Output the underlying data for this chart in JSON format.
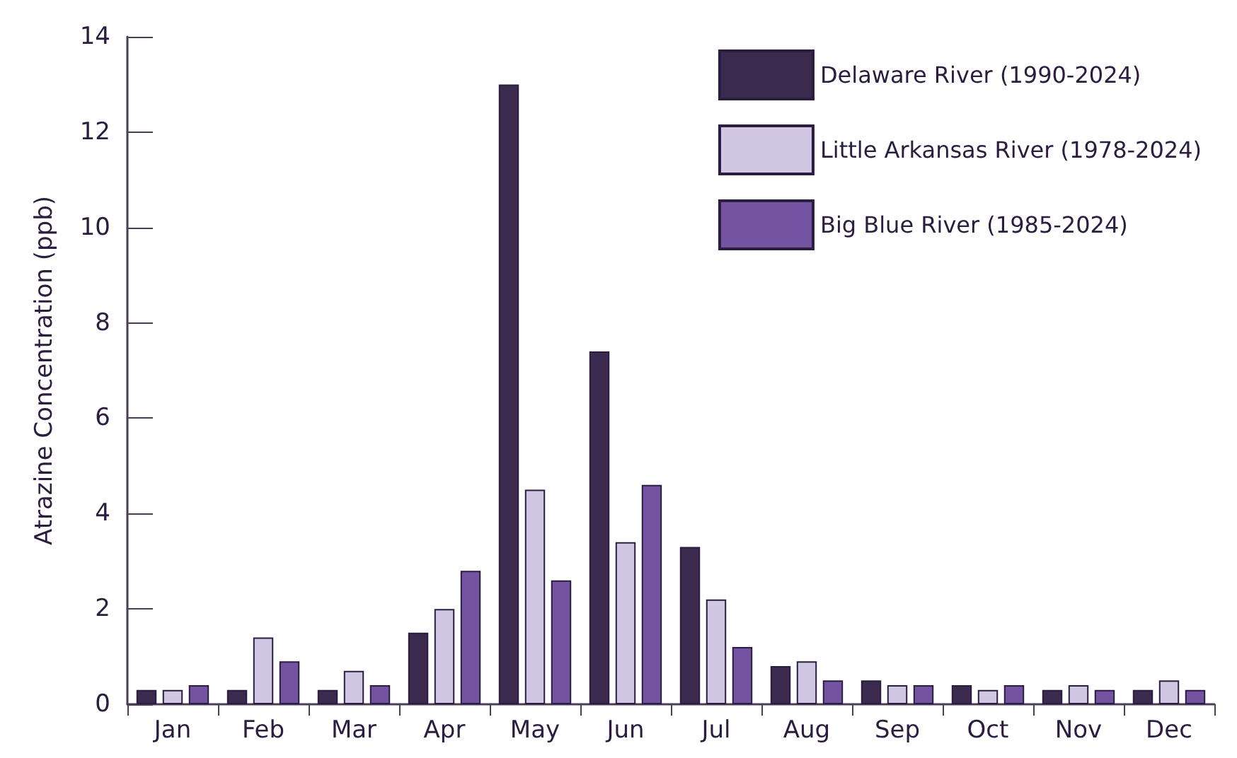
{
  "chart_data": {
    "type": "bar",
    "ylabel": "Atrazine Concentration (ppb)",
    "categories": [
      "Jan",
      "Feb",
      "Mar",
      "Apr",
      "May",
      "Jun",
      "Jul",
      "Aug",
      "Sep",
      "Oct",
      "Nov",
      "Dec"
    ],
    "series": [
      {
        "name": "Delaware River (1990-2024)",
        "color": "#3a2a4d",
        "values": [
          0.3,
          0.3,
          0.3,
          1.5,
          13.0,
          7.4,
          3.3,
          0.8,
          0.5,
          0.4,
          0.3,
          0.3
        ]
      },
      {
        "name": "Little Arkansas River (1978-2024)",
        "color": "#d0c8e2",
        "values": [
          0.3,
          1.4,
          0.7,
          2.0,
          4.5,
          3.4,
          2.2,
          0.9,
          0.4,
          0.3,
          0.4,
          0.5
        ]
      },
      {
        "name": "Big Blue River (1985-2024)",
        "color": "#7553a3",
        "values": [
          0.4,
          0.9,
          0.4,
          2.8,
          2.6,
          4.6,
          1.2,
          0.5,
          0.4,
          0.4,
          0.3,
          0.3
        ]
      }
    ],
    "ylim": [
      0,
      14
    ],
    "yticks": [
      0,
      2,
      4,
      6,
      8,
      10,
      12,
      14
    ],
    "grid": false,
    "legend": "top right"
  }
}
